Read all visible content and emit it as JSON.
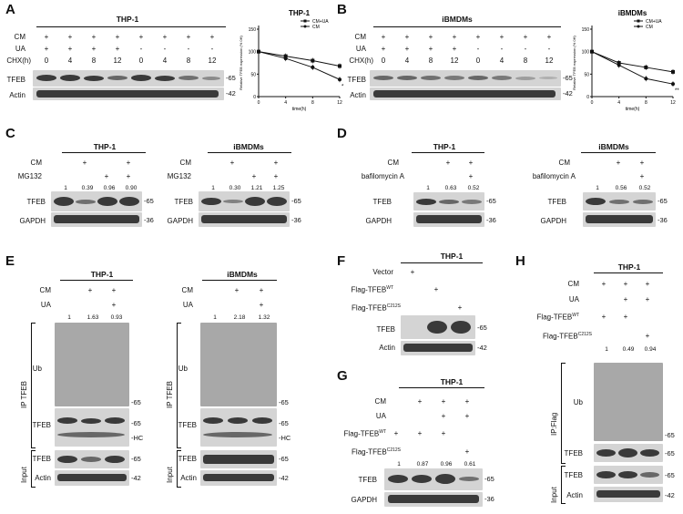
{
  "A": {
    "letter": "A",
    "header": "THP-1",
    "row_labels": [
      "CM",
      "UA",
      "CHX(h)"
    ],
    "cm": [
      "+",
      "+",
      "+",
      "+",
      "+",
      "+",
      "+",
      "+"
    ],
    "ua": [
      "+",
      "+",
      "+",
      "+",
      "-",
      "-",
      "-",
      "-"
    ],
    "chx": [
      "0",
      "4",
      "8",
      "12",
      "0",
      "4",
      "8",
      "12"
    ],
    "blot_labels": [
      "TFEB",
      "Actin"
    ],
    "mw": [
      "-65",
      "-42"
    ]
  },
  "B": {
    "letter": "B",
    "header": "iBMDMs",
    "row_labels": [
      "CM",
      "UA",
      "CHX(h)"
    ],
    "cm": [
      "+",
      "+",
      "+",
      "+",
      "+",
      "+",
      "+",
      "+"
    ],
    "ua": [
      "+",
      "+",
      "+",
      "+",
      "-",
      "-",
      "-",
      "-"
    ],
    "chx": [
      "0",
      "4",
      "8",
      "12",
      "0",
      "4",
      "8",
      "12"
    ],
    "blot_labels": [
      "TFEB",
      "Actin"
    ],
    "mw": [
      "-65",
      "-42"
    ]
  },
  "C": {
    "letter": "C"
  },
  "D": {
    "letter": "D"
  },
  "E": {
    "letter": "E"
  },
  "F": {
    "letter": "F"
  },
  "G": {
    "letter": "G"
  },
  "H": {
    "letter": "H"
  },
  "C_left": {
    "header": "THP-1",
    "row_labels": [
      "CM",
      "MG132"
    ],
    "cm": [
      "",
      "+",
      "",
      "+"
    ],
    "treat": [
      "",
      "",
      "+",
      "+"
    ],
    "nums": [
      "1",
      "0.39",
      "0.96",
      "0.90"
    ],
    "blot_labels": [
      "TFEB",
      "GAPDH"
    ],
    "mw": [
      "-65",
      "-36"
    ]
  },
  "C_right": {
    "header": "iBMDMs",
    "row_labels": [
      "CM",
      "MG132"
    ],
    "cm": [
      "",
      "+",
      "",
      "+"
    ],
    "treat": [
      "",
      "",
      "+",
      "+"
    ],
    "nums": [
      "1",
      "0.30",
      "1.21",
      "1.25"
    ],
    "blot_labels": [
      "TFEB",
      "GAPDH"
    ],
    "mw": [
      "-65",
      "-36"
    ]
  },
  "D_left": {
    "header": "THP-1",
    "row_labels": [
      "CM",
      "bafilomycin A"
    ],
    "cm": [
      "",
      "+",
      "+"
    ],
    "treat": [
      "",
      "",
      "+"
    ],
    "nums": [
      "1",
      "0.63",
      "0.52"
    ],
    "blot_labels": [
      "TFEB",
      "GAPDH"
    ],
    "mw": [
      "-65",
      "-36"
    ]
  },
  "D_right": {
    "header": "iBMDMs",
    "row_labels": [
      "CM",
      "bafilomycin A"
    ],
    "cm": [
      "",
      "+",
      "+"
    ],
    "treat": [
      "",
      "",
      "+"
    ],
    "nums": [
      "1",
      "0.56",
      "0.52"
    ],
    "blot_labels": [
      "TFEB",
      "GAPDH"
    ],
    "mw": [
      "-65",
      "-36"
    ]
  },
  "E_left": {
    "header": "THP-1",
    "row_labels": [
      "CM",
      "UA"
    ],
    "cm": [
      "",
      "+",
      "+"
    ],
    "ua": [
      "",
      "",
      "+"
    ],
    "nums": [
      "1",
      "1.63",
      "0.93"
    ],
    "ip_label": "IP TFEB",
    "input_label": "Input",
    "blot_labels": [
      "Ub",
      "TFEB",
      "TFEB",
      "Actin"
    ],
    "mw": [
      "-65",
      "-65",
      "-HC",
      "-65",
      "-42"
    ]
  },
  "E_right": {
    "header": "iBMDMs",
    "row_labels": [
      "CM",
      "UA"
    ],
    "cm": [
      "",
      "+",
      "+"
    ],
    "ua": [
      "",
      "",
      "+"
    ],
    "nums": [
      "1",
      "2.18",
      "1.32"
    ],
    "ip_label": "IP TFEB",
    "input_label": "Input",
    "blot_labels": [
      "Ub",
      "TFEB",
      "TFEB",
      "Actin"
    ],
    "mw": [
      "-65",
      "-65",
      "-HC",
      "-65",
      "-42"
    ]
  },
  "F_panel": {
    "header": "THP-1",
    "row_labels": [
      "Vector",
      "Flag-TFEB",
      "Flag-TFEB"
    ],
    "sups": [
      "WT",
      "C212S"
    ],
    "vector": [
      "+",
      "",
      ""
    ],
    "wt": [
      "",
      "+",
      ""
    ],
    "mut": [
      "",
      "",
      "+"
    ],
    "blot_labels": [
      "TFEB",
      "Actin"
    ],
    "mw": [
      "-65",
      "-42"
    ]
  },
  "G_panel": {
    "header": "THP-1",
    "row_labels": [
      "CM",
      "UA",
      "Flag-TFEB",
      "Flag-TFEB"
    ],
    "sups": [
      "WT",
      "C212S"
    ],
    "cm": [
      "",
      "+",
      "+",
      "+"
    ],
    "ua": [
      "",
      "",
      "+",
      "+"
    ],
    "wt": [
      "+",
      "+",
      "+",
      ""
    ],
    "mut": [
      "",
      "",
      "",
      "+"
    ],
    "nums": [
      "1",
      "0.87",
      "0.96",
      "0.61"
    ],
    "blot_labels": [
      "TFEB",
      "GAPDH"
    ],
    "mw": [
      "-65",
      "-36"
    ]
  },
  "H_panel": {
    "header": "THP-1",
    "row_labels": [
      "CM",
      "UA",
      "Flag-TFEB",
      "Flag-TFEB"
    ],
    "sups": [
      "WT",
      "C212S"
    ],
    "cm": [
      "+",
      "+",
      "+"
    ],
    "ua": [
      "",
      "+",
      "+"
    ],
    "wt": [
      "+",
      "+",
      ""
    ],
    "mut": [
      "",
      "",
      "+"
    ],
    "nums": [
      "1",
      "0.49",
      "0.94"
    ],
    "ip_label": "IP:Flag",
    "input_label": "Input",
    "blot_labels": [
      "Ub",
      "TFEB",
      "TFEB",
      "Actin"
    ],
    "mw": [
      "-65",
      "-65",
      "-65",
      "-42"
    ]
  },
  "chart_data": [
    {
      "type": "line",
      "title": "THP-1",
      "xlabel": "time(h)",
      "ylabel": "Relative TFEB expression (% 0H)",
      "x": [
        0,
        4,
        8,
        12
      ],
      "xlim": [
        0,
        12
      ],
      "ylim": [
        0,
        150
      ],
      "yticks": [
        0,
        50,
        100,
        150
      ],
      "xticks": [
        0,
        4,
        8,
        12
      ],
      "legend": "top-right",
      "series": [
        {
          "name": "CM+UA",
          "values": [
            100,
            90,
            80,
            68
          ],
          "marker": "square"
        },
        {
          "name": "CM",
          "values": [
            100,
            85,
            65,
            38
          ],
          "marker": "circle"
        }
      ],
      "annotations": [
        {
          "text": "*",
          "x": 12
        }
      ]
    },
    {
      "type": "line",
      "title": "iBMDMs",
      "xlabel": "time(h)",
      "ylabel": "Relative TFEB expression (% 0H)",
      "x": [
        0,
        4,
        8,
        12
      ],
      "xlim": [
        0,
        12
      ],
      "ylim": [
        0,
        150
      ],
      "yticks": [
        0,
        50,
        100,
        150
      ],
      "xticks": [
        0,
        4,
        8,
        12
      ],
      "legend": "top-right",
      "series": [
        {
          "name": "CM+UA",
          "values": [
            100,
            75,
            65,
            55
          ],
          "marker": "square"
        },
        {
          "name": "CM",
          "values": [
            100,
            70,
            40,
            28
          ],
          "marker": "circle"
        }
      ],
      "annotations": [
        {
          "text": "**",
          "x": 12
        }
      ]
    }
  ]
}
